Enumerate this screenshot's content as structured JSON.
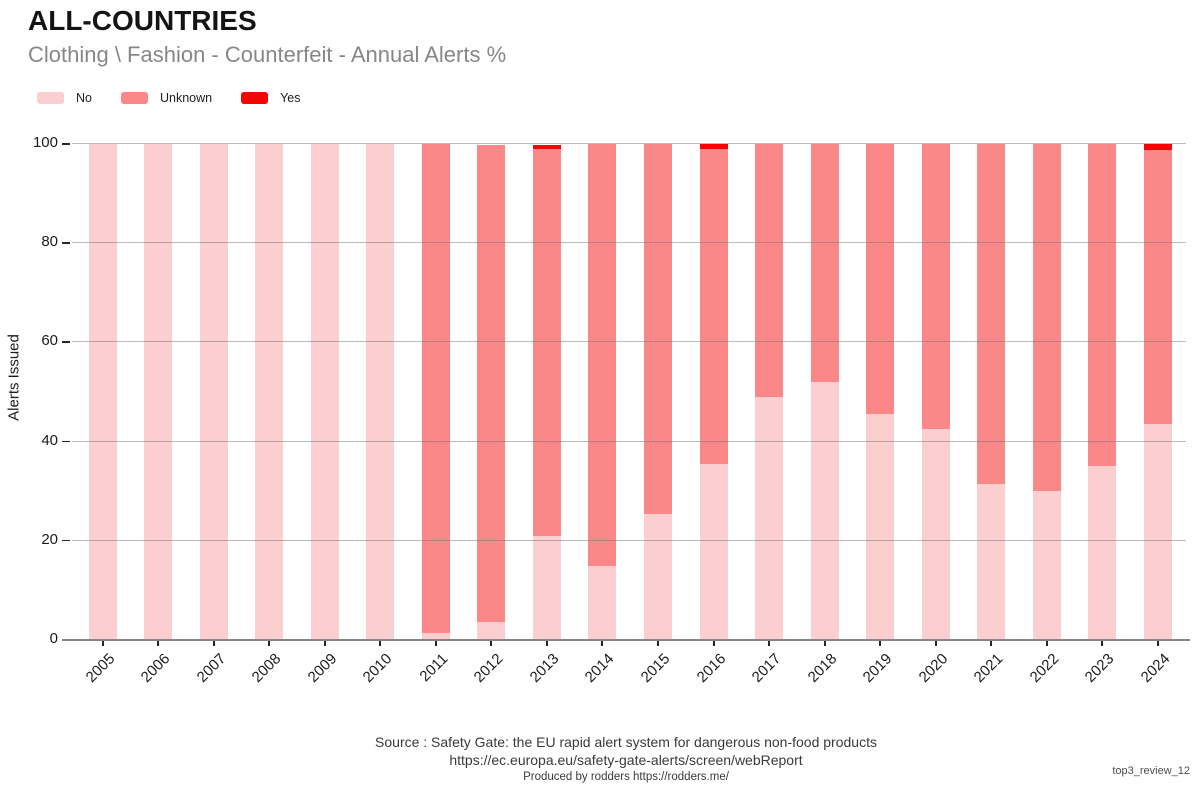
{
  "title": "ALL-COUNTRIES",
  "subtitle": "Clothing \\ Fashion - Counterfeit - Annual Alerts %",
  "legend": {
    "items": [
      {
        "label": "No",
        "color": "#FBCFCF"
      },
      {
        "label": "Unknown",
        "color": "#FA8888"
      },
      {
        "label": "Yes",
        "color": "#F10505"
      }
    ],
    "position": "top-left"
  },
  "footer": {
    "source_line": "Source : Safety Gate: the EU rapid alert system for dangerous non-food products",
    "url_line": "https://ec.europa.eu/safety-gate-alerts/screen/webReport",
    "produced_line": "Produced by rodders https://rodders.me/",
    "watermark": "top3_review_12"
  },
  "colors": {
    "no": "#FBCFCF",
    "unknown": "#FA8888",
    "yes": "#F10505",
    "gridline": "#B9B9B9",
    "axis_line": "#858585",
    "subtitle_text": "#878787"
  },
  "chart_data": {
    "type": "bar",
    "stacked": true,
    "title": "ALL-COUNTRIES",
    "subtitle": "Clothing \\ Fashion - Counterfeit - Annual Alerts %",
    "xlabel": "",
    "ylabel": "Alerts Issued",
    "ylim": [
      0,
      100
    ],
    "yticks": [
      0,
      20,
      40,
      60,
      80,
      100
    ],
    "grid": true,
    "legend_position": "top-left",
    "categories": [
      "2005",
      "2006",
      "2007",
      "2008",
      "2009",
      "2010",
      "2011",
      "2012",
      "2013",
      "2014",
      "2015",
      "2016",
      "2017",
      "2018",
      "2019",
      "2020",
      "2021",
      "2022",
      "2023",
      "2024"
    ],
    "series": [
      {
        "name": "No",
        "color": "#FBCFCF",
        "values": [
          100,
          100,
          100,
          100,
          100,
          100,
          1.4,
          3.6,
          21,
          15,
          25.5,
          35.5,
          49,
          52,
          45.5,
          42.5,
          31.5,
          30,
          35,
          43.5
        ]
      },
      {
        "name": "Unknown",
        "color": "#FA8888",
        "values": [
          0,
          0,
          0,
          0,
          0,
          0,
          98.6,
          96.2,
          78,
          85,
          74.5,
          63.5,
          51,
          48,
          54.5,
          57.5,
          68.5,
          70,
          65,
          55.3
        ]
      },
      {
        "name": "Yes",
        "color": "#F10505",
        "values": [
          0,
          0,
          0,
          0,
          0,
          0,
          0,
          0,
          0.8,
          0,
          0,
          1,
          0,
          0,
          0,
          0,
          0,
          0,
          0,
          1.2
        ]
      }
    ]
  }
}
